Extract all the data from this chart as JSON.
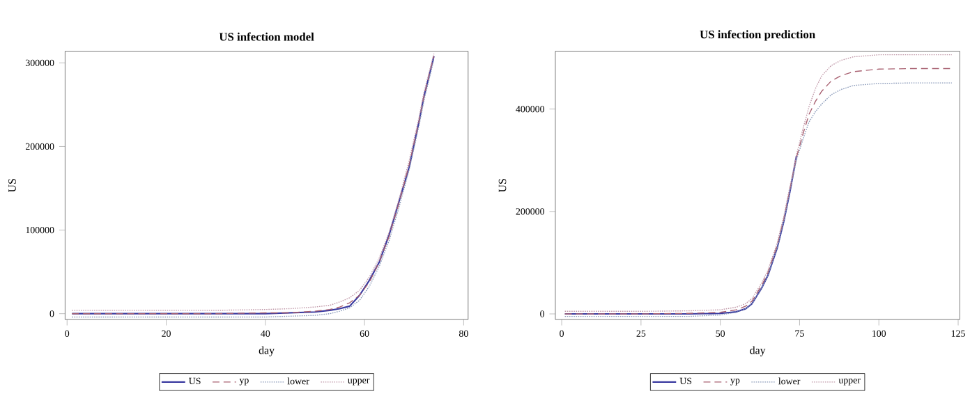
{
  "chart_data": [
    {
      "type": "line",
      "title": "US infection model",
      "xlabel": "day",
      "ylabel": "US",
      "legend": "bottom",
      "xlim": [
        -0.4,
        80.9
      ],
      "ylim": [
        -7000,
        314000
      ],
      "xticks": [
        0,
        20,
        40,
        60,
        80
      ],
      "yticks": [
        0,
        100000,
        200000,
        300000
      ],
      "x": [
        1,
        10,
        20,
        30,
        40,
        45,
        50,
        53,
        55,
        57,
        59,
        61,
        63,
        65,
        67,
        69,
        71,
        72,
        74
      ],
      "series": [
        {
          "name": "US",
          "color": "#3a3aa0",
          "line_style": "solid",
          "values": [
            0,
            0,
            0,
            0,
            0,
            1000,
            2000,
            4000,
            6000,
            9000,
            22000,
            40000,
            62000,
            95000,
            135000,
            175000,
            230000,
            260000,
            308000
          ]
        },
        {
          "name": "yp",
          "color": "#a86070",
          "line_style": "dashed",
          "values": [
            0,
            0,
            0,
            0,
            1000,
            1000,
            3000,
            5000,
            8000,
            13000,
            22000,
            38000,
            62000,
            93000,
            133000,
            178000,
            230000,
            260000,
            308000
          ]
        },
        {
          "name": "lower",
          "color": "#8898b8",
          "line_style": "dotted",
          "values": [
            -4000,
            -4000,
            -4000,
            -4000,
            -4000,
            -3000,
            -2000,
            0,
            3000,
            7000,
            16000,
            33000,
            57000,
            88000,
            128000,
            172000,
            225000,
            255000,
            304000
          ]
        },
        {
          "name": "upper",
          "color": "#c098a8",
          "line_style": "dotted",
          "values": [
            4000,
            4000,
            4000,
            4000,
            5000,
            6000,
            8000,
            10000,
            14000,
            19000,
            28000,
            44000,
            67000,
            98000,
            138000,
            183000,
            235000,
            265000,
            311000
          ]
        }
      ]
    },
    {
      "type": "line",
      "title": "US infection prediction",
      "xlabel": "day",
      "ylabel": "US",
      "legend": "bottom",
      "xlim": [
        -2,
        125.5
      ],
      "ylim": [
        -11000,
        513000
      ],
      "xticks": [
        0,
        25,
        50,
        75,
        100,
        125
      ],
      "yticks": [
        0,
        200000,
        400000
      ],
      "x": [
        1,
        25,
        40,
        50,
        55,
        58,
        60,
        63,
        65,
        68,
        70,
        72,
        74,
        76,
        78,
        80,
        82,
        85,
        88,
        92,
        100,
        110,
        123
      ],
      "series": [
        {
          "name": "US",
          "color": "#3a3aa0",
          "line_style": "solid",
          "values": [
            0,
            0,
            0,
            1000,
            4000,
            10000,
            20000,
            50000,
            75000,
            130000,
            180000,
            240000,
            308000,
            null,
            null,
            null,
            null,
            null,
            null,
            null,
            null,
            null,
            null
          ]
        },
        {
          "name": "yp",
          "color": "#a86070",
          "line_style": "dashed",
          "values": [
            0,
            0,
            1000,
            3000,
            8000,
            15000,
            25000,
            55000,
            80000,
            135000,
            185000,
            245000,
            305000,
            350000,
            390000,
            415000,
            435000,
            455000,
            465000,
            473000,
            478000,
            479000,
            479000
          ]
        },
        {
          "name": "lower",
          "color": "#8898b8",
          "line_style": "dotted",
          "values": [
            -5000,
            -5000,
            -5000,
            -2000,
            3000,
            10000,
            20000,
            50000,
            75000,
            130000,
            180000,
            240000,
            300000,
            340000,
            375000,
            395000,
            410000,
            428000,
            438000,
            446000,
            450000,
            451000,
            451000
          ]
        },
        {
          "name": "upper",
          "color": "#c098a8",
          "line_style": "dotted",
          "values": [
            5000,
            5000,
            6000,
            8000,
            13000,
            20000,
            30000,
            60000,
            85000,
            140000,
            190000,
            250000,
            310000,
            360000,
            405000,
            440000,
            465000,
            485000,
            495000,
            502000,
            506000,
            506000,
            506000
          ]
        }
      ]
    }
  ]
}
